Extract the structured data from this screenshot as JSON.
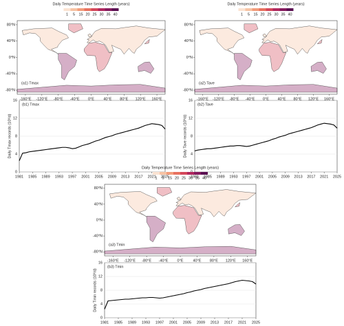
{
  "chart_data": [
    {
      "type": "map",
      "title": "Daily Temperature Time Series Length (years)",
      "panel_label": "(a1) Tmax",
      "colorbar_ticks": [
        1,
        5,
        15,
        20,
        25,
        30,
        35,
        40
      ],
      "colorbar_colors": [
        "#fbe3d2",
        "#f7c3a4",
        "#f29c7b",
        "#e8715f",
        "#d4475a",
        "#b0285e",
        "#861b5e",
        "#5a0f52"
      ],
      "xlim": [
        -180,
        180
      ],
      "ylim": [
        -90,
        90
      ],
      "xticks": [
        {
          "value": -160,
          "label": "-160°E"
        },
        {
          "value": -120,
          "label": "-120°E"
        },
        {
          "value": -80,
          "label": "-80°E"
        },
        {
          "value": -40,
          "label": "-40°E"
        },
        {
          "value": 0,
          "label": "0°E"
        },
        {
          "value": 40,
          "label": "40°E"
        },
        {
          "value": 80,
          "label": "80°E"
        },
        {
          "value": 120,
          "label": "120°E"
        },
        {
          "value": 160,
          "label": "160°E"
        }
      ],
      "yticks": [
        {
          "value": 80,
          "label": "80°N"
        },
        {
          "value": 40,
          "label": "40°N"
        },
        {
          "value": 0,
          "label": "0°N"
        },
        {
          "value": -40,
          "label": "-40°N"
        },
        {
          "value": -80,
          "label": "-80°N"
        }
      ]
    },
    {
      "type": "line",
      "panel_label": "(b1) Tmax",
      "ylabel": "Daily Tmax records (10³/d)",
      "x": [
        1981,
        1982,
        1983,
        1984,
        1985,
        1986,
        1987,
        1988,
        1989,
        1990,
        1991,
        1992,
        1993,
        1994,
        1995,
        1996,
        1997,
        1998,
        1999,
        2000,
        2001,
        2002,
        2003,
        2004,
        2005,
        2006,
        2007,
        2008,
        2009,
        2010,
        2011,
        2012,
        2013,
        2014,
        2015,
        2016,
        2017,
        2018,
        2019,
        2020,
        2021,
        2022,
        2023,
        2024,
        2025
      ],
      "series": [
        {
          "color": "#000000",
          "values": [
            2.5,
            4.2,
            4.3,
            4.5,
            4.6,
            4.7,
            4.8,
            4.9,
            5.0,
            5.1,
            5.2,
            5.3,
            5.4,
            5.5,
            5.5,
            5.4,
            5.2,
            5.3,
            5.6,
            5.9,
            6.1,
            6.3,
            6.6,
            6.9,
            7.1,
            7.4,
            7.7,
            7.9,
            8.1,
            8.4,
            8.6,
            8.8,
            9.0,
            9.2,
            9.4,
            9.6,
            9.8,
            10.1,
            10.4,
            10.6,
            10.8,
            10.7,
            10.6,
            10.4,
            9.6
          ]
        }
      ],
      "xlim": [
        1981,
        2025
      ],
      "ylim": [
        0,
        16
      ],
      "xticks": [
        1981,
        1985,
        1989,
        1993,
        1997,
        2001,
        2005,
        2009,
        2013,
        2017,
        2021,
        2025
      ],
      "yticks": [
        0,
        4,
        8,
        12,
        16
      ]
    },
    {
      "type": "map",
      "title": "Daily Temperature Time Series Length (years)",
      "panel_label": "(a2) Tave",
      "colorbar_ticks": [
        1,
        5,
        15,
        20,
        25,
        30,
        35,
        40
      ],
      "colorbar_colors": [
        "#fbe3d2",
        "#f7c3a4",
        "#f29c7b",
        "#e8715f",
        "#d4475a",
        "#b0285e",
        "#861b5e",
        "#5a0f52"
      ],
      "xlim": [
        -180,
        180
      ],
      "ylim": [
        -90,
        90
      ],
      "xticks": [
        {
          "value": -160,
          "label": "-160°E"
        },
        {
          "value": -120,
          "label": "-120°E"
        },
        {
          "value": -80,
          "label": "-80°E"
        },
        {
          "value": -40,
          "label": "-40°E"
        },
        {
          "value": 0,
          "label": "0°E"
        },
        {
          "value": 40,
          "label": "40°E"
        },
        {
          "value": 80,
          "label": "80°E"
        },
        {
          "value": 120,
          "label": "120°E"
        },
        {
          "value": 160,
          "label": "160°E"
        }
      ],
      "yticks": [
        {
          "value": 80,
          "label": "80°N"
        },
        {
          "value": 40,
          "label": "40°N"
        },
        {
          "value": 0,
          "label": "0°N"
        },
        {
          "value": -40,
          "label": "-40°N"
        },
        {
          "value": -80,
          "label": "-80°N"
        }
      ]
    },
    {
      "type": "line",
      "panel_label": "(b2) Tave",
      "ylabel": "Daily Tave records (10³/d)",
      "x": [
        1981,
        1982,
        1983,
        1984,
        1985,
        1986,
        1987,
        1988,
        1989,
        1990,
        1991,
        1992,
        1993,
        1994,
        1995,
        1996,
        1997,
        1998,
        1999,
        2000,
        2001,
        2002,
        2003,
        2004,
        2005,
        2006,
        2007,
        2008,
        2009,
        2010,
        2011,
        2012,
        2013,
        2014,
        2015,
        2016,
        2017,
        2018,
        2019,
        2020,
        2021,
        2022,
        2023,
        2024,
        2025
      ],
      "series": [
        {
          "color": "#000000",
          "values": [
            4.7,
            4.9,
            5.0,
            5.1,
            5.2,
            5.2,
            5.3,
            5.4,
            5.5,
            5.6,
            5.7,
            5.8,
            5.8,
            5.9,
            5.9,
            5.8,
            5.7,
            5.8,
            6.0,
            6.2,
            6.4,
            6.6,
            6.8,
            7.0,
            7.3,
            7.5,
            7.8,
            8.0,
            8.2,
            8.5,
            8.7,
            8.9,
            9.1,
            9.3,
            9.5,
            9.7,
            9.9,
            10.2,
            10.5,
            10.7,
            10.9,
            10.8,
            10.7,
            10.5,
            9.8
          ]
        }
      ],
      "xlim": [
        1981,
        2025
      ],
      "ylim": [
        0,
        16
      ],
      "xticks": [
        1981,
        1985,
        1989,
        1993,
        1997,
        2001,
        2005,
        2009,
        2013,
        2017,
        2021,
        2025
      ],
      "yticks": [
        0,
        4,
        8,
        12,
        16
      ]
    },
    {
      "type": "map",
      "title": "Daily Temperature Time Series Length (years)",
      "panel_label": "(a3) Tmin",
      "colorbar_ticks": [
        1,
        5,
        15,
        20,
        25,
        30,
        35,
        40
      ],
      "colorbar_colors": [
        "#fbe3d2",
        "#f7c3a4",
        "#f29c7b",
        "#e8715f",
        "#d4475a",
        "#b0285e",
        "#861b5e",
        "#5a0f52"
      ],
      "xlim": [
        -180,
        180
      ],
      "ylim": [
        -90,
        90
      ],
      "xticks": [
        {
          "value": -160,
          "label": "-160°E"
        },
        {
          "value": -120,
          "label": "-120°E"
        },
        {
          "value": -80,
          "label": "-80°E"
        },
        {
          "value": -40,
          "label": "-40°E"
        },
        {
          "value": 0,
          "label": "0°E"
        },
        {
          "value": 40,
          "label": "40°E"
        },
        {
          "value": 80,
          "label": "80°E"
        },
        {
          "value": 120,
          "label": "120°E"
        },
        {
          "value": 160,
          "label": "160°E"
        }
      ],
      "yticks": [
        {
          "value": 80,
          "label": "80°N"
        },
        {
          "value": 40,
          "label": "40°N"
        },
        {
          "value": 0,
          "label": "0°N"
        },
        {
          "value": -40,
          "label": "-40°N"
        },
        {
          "value": -80,
          "label": "-80°N"
        }
      ]
    },
    {
      "type": "line",
      "panel_label": "(b3) Tmin",
      "ylabel": "Daily Tmin records (10³/d)",
      "x": [
        1981,
        1982,
        1983,
        1984,
        1985,
        1986,
        1987,
        1988,
        1989,
        1990,
        1991,
        1992,
        1993,
        1994,
        1995,
        1996,
        1997,
        1998,
        1999,
        2000,
        2001,
        2002,
        2003,
        2004,
        2005,
        2006,
        2007,
        2008,
        2009,
        2010,
        2011,
        2012,
        2013,
        2014,
        2015,
        2016,
        2017,
        2018,
        2019,
        2020,
        2021,
        2022,
        2023,
        2024,
        2025
      ],
      "series": [
        {
          "color": "#000000",
          "values": [
            2.5,
            4.9,
            5.0,
            5.1,
            5.2,
            5.3,
            5.4,
            5.4,
            5.5,
            5.6,
            5.7,
            5.8,
            5.8,
            5.9,
            5.9,
            5.8,
            5.7,
            5.8,
            6.0,
            6.2,
            6.4,
            6.6,
            6.8,
            7.0,
            7.3,
            7.5,
            7.8,
            8.0,
            8.2,
            8.5,
            8.7,
            8.9,
            9.1,
            9.3,
            9.5,
            9.7,
            9.9,
            10.2,
            10.5,
            10.7,
            10.9,
            10.8,
            10.7,
            10.5,
            9.8
          ]
        }
      ],
      "xlim": [
        1981,
        2025
      ],
      "ylim": [
        0,
        16
      ],
      "xticks": [
        1981,
        1985,
        1989,
        1993,
        1997,
        2001,
        2005,
        2009,
        2013,
        2017,
        2021,
        2025
      ],
      "yticks": [
        0,
        4,
        8,
        12,
        16
      ]
    }
  ]
}
